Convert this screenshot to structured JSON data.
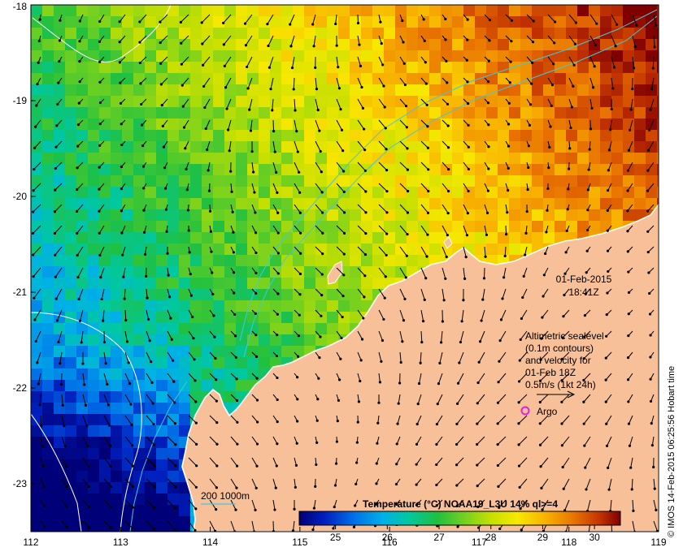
{
  "map": {
    "lon_ticks": [
      "112",
      "113",
      "114",
      "115",
      "116",
      "117",
      "118",
      "119"
    ],
    "lat_ticks": [
      "-18",
      "-19",
      "-20",
      "-21",
      "-22",
      "-23"
    ],
    "lon_range": [
      112,
      119
    ],
    "lat_range": [
      -23.5,
      -18
    ]
  },
  "timestamp": {
    "date": "01-Feb-2015",
    "time": "18:41Z"
  },
  "legend": {
    "line1": "Altimetric sealevel",
    "line2": "(0.1m contours)",
    "line3": "and velocity for",
    "line4": "01-Feb 18Z",
    "line5": "0.5m/s (1kt 24h)",
    "argo_label": "Argo"
  },
  "depth_legend": {
    "label": "200  1000m",
    "line_color": "#40c8e0"
  },
  "colorbar": {
    "title": "Temperature (°C) NOAA19_L3U 14% ql>=4",
    "ticks": [
      "25",
      "26",
      "27",
      "28",
      "29",
      "30"
    ],
    "tick_values": [
      25,
      26,
      27,
      28,
      29,
      30
    ],
    "range": [
      24.3,
      30.5
    ]
  },
  "credit": "© IMOS 14-Feb-2015 06:25:56 Hobart time",
  "colors": {
    "land": "#f8c098",
    "argo": "#e020e0",
    "contour": "#40c8e0"
  }
}
